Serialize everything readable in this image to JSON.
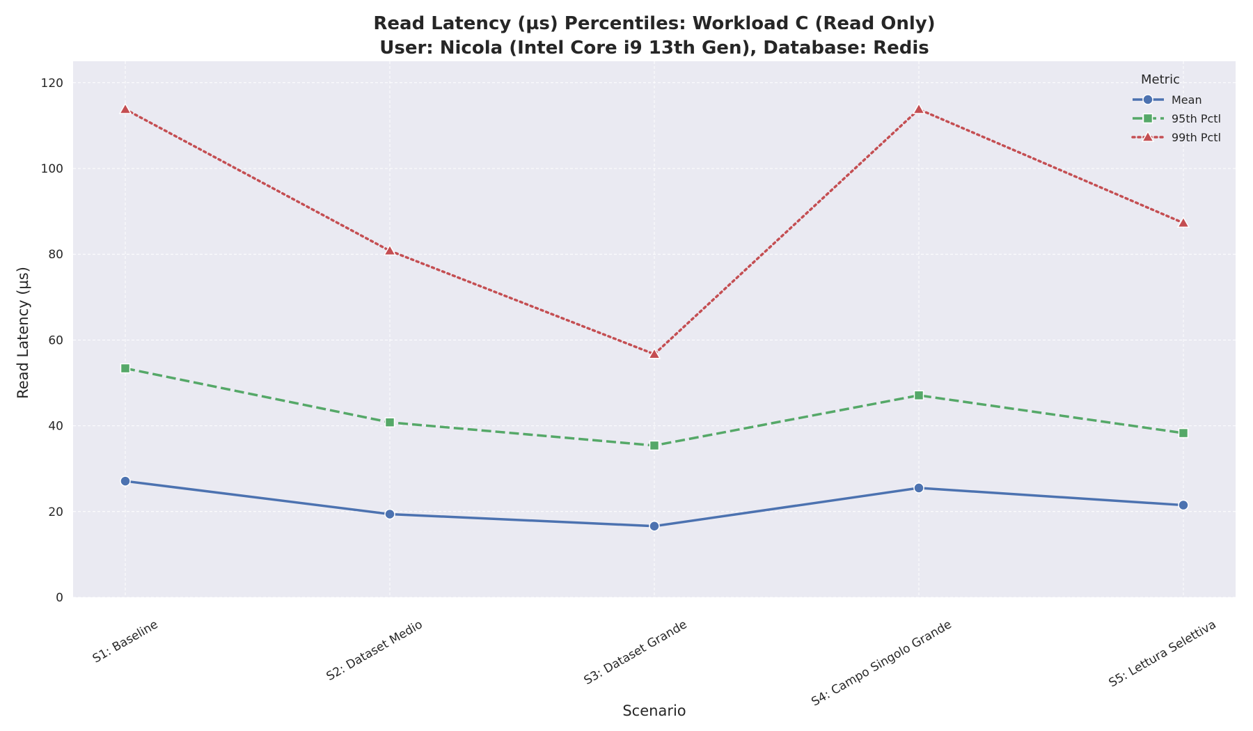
{
  "chart_data": {
    "type": "line",
    "title": "Read Latency (µs) Percentiles: Workload C (Read Only)",
    "subtitle": "User: Nicola (Intel Core i9 13th Gen), Database: Redis",
    "xlabel": "Scenario",
    "ylabel": "Read Latency (µs)",
    "ylim": [
      0,
      125
    ],
    "yticks": [
      0,
      20,
      40,
      60,
      80,
      100,
      120
    ],
    "grid": true,
    "legend_title": "Metric",
    "legend_position": "top-right",
    "categories": [
      "S1: Baseline",
      "S2: Dataset Medio",
      "S3: Dataset Grande",
      "S4: Campo Singolo Grande",
      "S5: Lettura Selettiva"
    ],
    "series": [
      {
        "name": "Mean",
        "values": [
          27.1,
          19.4,
          16.6,
          25.5,
          21.5
        ],
        "color": "#4c72b0",
        "dash": "solid",
        "marker": "circle"
      },
      {
        "name": "95th Pctl",
        "values": [
          53.4,
          40.8,
          35.4,
          47.1,
          38.3
        ],
        "color": "#55a868",
        "dash": "dashed",
        "marker": "square"
      },
      {
        "name": "99th Pctl",
        "values": [
          113.8,
          80.8,
          56.7,
          113.8,
          87.3
        ],
        "color": "#c44e52",
        "dash": "dotted",
        "marker": "triangle"
      }
    ],
    "colors": {
      "plot_background": "#eaeaf2",
      "grid": "#ffffff"
    }
  }
}
